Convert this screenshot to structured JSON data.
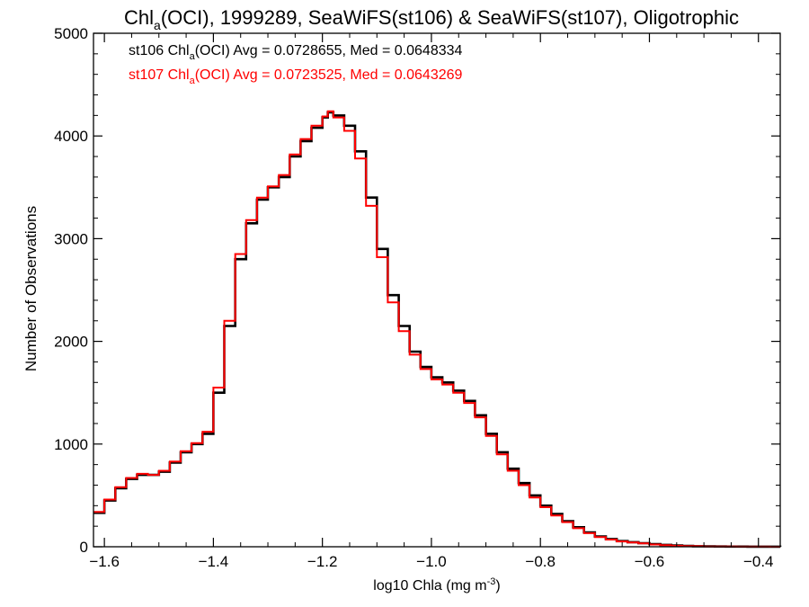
{
  "chart_data": {
    "type": "line",
    "title_parts": {
      "pre": "Chl",
      "sub": "a",
      "post": "(OCI), 1999289, SeaWiFS(st106) & SeaWiFS(st107), Oligotrophic"
    },
    "xlabel_parts": {
      "pre": "log10 Chla (mg m",
      "sup": "-3",
      "post": ")"
    },
    "ylabel": "Number of Observations",
    "xlim": [
      -1.62,
      -0.36
    ],
    "ylim": [
      0,
      5000
    ],
    "xticks": [
      -1.6,
      -1.4,
      -1.2,
      -1.0,
      -0.8,
      -0.6,
      -0.4
    ],
    "xtick_labels": [
      "−1.6",
      "−1.4",
      "−1.2",
      "−1.0",
      "−0.8",
      "−0.6",
      "−0.4"
    ],
    "yticks": [
      0,
      1000,
      2000,
      3000,
      4000,
      5000
    ],
    "ytick_labels": [
      "0",
      "1000",
      "2000",
      "3000",
      "4000",
      "5000"
    ],
    "grid": false,
    "legend": "top-left",
    "annotations": [
      {
        "color": "#000000",
        "pre": "st106 Chl",
        "sub": "a",
        "post": "(OCI) Avg = 0.0728655, Med = 0.0648334"
      },
      {
        "color": "#ff0000",
        "pre": "st107 Chl",
        "sub": "a",
        "post": "(OCI) Avg = 0.0723525, Med = 0.0643269"
      }
    ],
    "series": [
      {
        "color": "#000000",
        "x": [
          -1.62,
          -1.6,
          -1.58,
          -1.56,
          -1.54,
          -1.52,
          -1.5,
          -1.48,
          -1.46,
          -1.44,
          -1.42,
          -1.4,
          -1.38,
          -1.36,
          -1.34,
          -1.32,
          -1.3,
          -1.28,
          -1.26,
          -1.24,
          -1.22,
          -1.2,
          -1.19,
          -1.18,
          -1.16,
          -1.14,
          -1.12,
          -1.1,
          -1.08,
          -1.06,
          -1.04,
          -1.02,
          -1.0,
          -0.98,
          -0.96,
          -0.94,
          -0.92,
          -0.9,
          -0.88,
          -0.86,
          -0.84,
          -0.82,
          -0.8,
          -0.78,
          -0.76,
          -0.74,
          -0.72,
          -0.7,
          -0.68,
          -0.66,
          -0.64,
          -0.62,
          -0.6,
          -0.58,
          -0.56,
          -0.54,
          -0.52,
          -0.5,
          -0.48,
          -0.46,
          -0.44,
          -0.42,
          -0.4,
          -0.38,
          -0.36
        ],
        "y": [
          330,
          450,
          570,
          660,
          700,
          700,
          730,
          820,
          920,
          1000,
          1100,
          1500,
          2150,
          2800,
          3150,
          3380,
          3500,
          3600,
          3800,
          3950,
          4080,
          4180,
          4230,
          4200,
          4100,
          3850,
          3400,
          2900,
          2450,
          2150,
          1900,
          1750,
          1650,
          1600,
          1520,
          1420,
          1280,
          1100,
          920,
          760,
          620,
          500,
          400,
          320,
          250,
          190,
          140,
          100,
          75,
          55,
          45,
          35,
          25,
          18,
          12,
          8,
          5,
          4,
          3,
          2,
          2,
          1,
          1,
          1,
          0
        ]
      },
      {
        "color": "#ff0000",
        "x": [
          -1.62,
          -1.6,
          -1.58,
          -1.56,
          -1.54,
          -1.52,
          -1.5,
          -1.48,
          -1.46,
          -1.44,
          -1.42,
          -1.4,
          -1.38,
          -1.36,
          -1.34,
          -1.32,
          -1.3,
          -1.28,
          -1.26,
          -1.24,
          -1.22,
          -1.2,
          -1.19,
          -1.18,
          -1.16,
          -1.14,
          -1.12,
          -1.1,
          -1.08,
          -1.06,
          -1.04,
          -1.02,
          -1.0,
          -0.98,
          -0.96,
          -0.94,
          -0.92,
          -0.9,
          -0.88,
          -0.86,
          -0.84,
          -0.82,
          -0.8,
          -0.78,
          -0.76,
          -0.74,
          -0.72,
          -0.7,
          -0.68,
          -0.66,
          -0.64,
          -0.62,
          -0.6,
          -0.58,
          -0.56,
          -0.54,
          -0.52,
          -0.5,
          -0.48,
          -0.46,
          -0.44,
          -0.42,
          -0.4,
          -0.38,
          -0.36
        ],
        "y": [
          340,
          460,
          580,
          670,
          710,
          700,
          740,
          830,
          930,
          1010,
          1120,
          1550,
          2200,
          2850,
          3180,
          3400,
          3510,
          3620,
          3820,
          3970,
          4100,
          4190,
          4240,
          4180,
          4050,
          3780,
          3320,
          2820,
          2380,
          2100,
          1870,
          1730,
          1630,
          1580,
          1500,
          1400,
          1260,
          1080,
          900,
          740,
          600,
          480,
          385,
          305,
          240,
          180,
          132,
          95,
          70,
          52,
          42,
          32,
          22,
          16,
          10,
          7,
          5,
          3,
          3,
          2,
          1,
          1,
          1,
          0,
          0
        ]
      }
    ]
  }
}
